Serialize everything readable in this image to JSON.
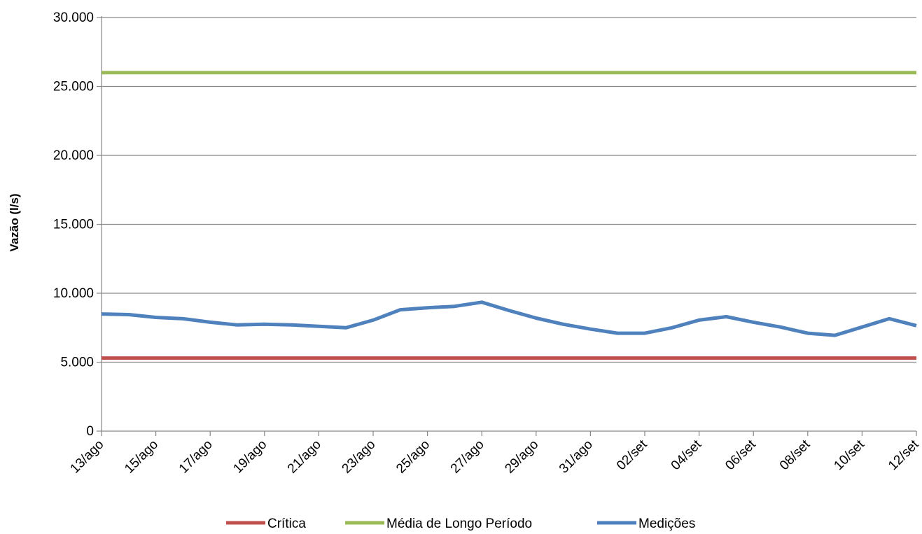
{
  "chart_data": {
    "type": "line",
    "title": "",
    "xlabel": "",
    "ylabel": "Vazão (l/s)",
    "ylim": [
      0,
      30000
    ],
    "yticks": [
      0,
      5000,
      10000,
      15000,
      20000,
      25000,
      30000
    ],
    "ytick_labels": [
      "0",
      "5.000",
      "10.000",
      "15.000",
      "20.000",
      "25.000",
      "30.000"
    ],
    "x": [
      "13/ago",
      "14/ago",
      "15/ago",
      "16/ago",
      "17/ago",
      "18/ago",
      "19/ago",
      "20/ago",
      "21/ago",
      "22/ago",
      "23/ago",
      "24/ago",
      "25/ago",
      "26/ago",
      "27/ago",
      "28/ago",
      "29/ago",
      "30/ago",
      "31/ago",
      "01/set",
      "02/set",
      "03/set",
      "04/set",
      "05/set",
      "06/set",
      "07/set",
      "08/set",
      "09/set",
      "10/set",
      "11/set",
      "12/set"
    ],
    "xtick_labels": [
      "13/ago",
      "15/ago",
      "17/ago",
      "19/ago",
      "21/ago",
      "23/ago",
      "25/ago",
      "27/ago",
      "29/ago",
      "31/ago",
      "02/set",
      "04/set",
      "06/set",
      "08/set",
      "10/set",
      "12/set"
    ],
    "grid": "horizontal",
    "legend_position": "bottom",
    "series": [
      {
        "name": "Crítica",
        "color": "#c0504d",
        "values": [
          5300,
          5300,
          5300,
          5300,
          5300,
          5300,
          5300,
          5300,
          5300,
          5300,
          5300,
          5300,
          5300,
          5300,
          5300,
          5300,
          5300,
          5300,
          5300,
          5300,
          5300,
          5300,
          5300,
          5300,
          5300,
          5300,
          5300,
          5300,
          5300,
          5300,
          5300
        ]
      },
      {
        "name": "Média de Longo Período",
        "color": "#9bbb59",
        "values": [
          26000,
          26000,
          26000,
          26000,
          26000,
          26000,
          26000,
          26000,
          26000,
          26000,
          26000,
          26000,
          26000,
          26000,
          26000,
          26000,
          26000,
          26000,
          26000,
          26000,
          26000,
          26000,
          26000,
          26000,
          26000,
          26000,
          26000,
          26000,
          26000,
          26000,
          26000
        ]
      },
      {
        "name": "Medições",
        "color": "#4f81bd",
        "values": [
          8500,
          8450,
          8250,
          8150,
          7900,
          7700,
          7750,
          7700,
          7600,
          7500,
          8050,
          8800,
          8950,
          9050,
          9350,
          8750,
          8200,
          7750,
          7400,
          7100,
          7100,
          7500,
          8050,
          8300,
          7900,
          7550,
          7100,
          6950,
          7550,
          8150,
          7650
        ]
      }
    ]
  }
}
